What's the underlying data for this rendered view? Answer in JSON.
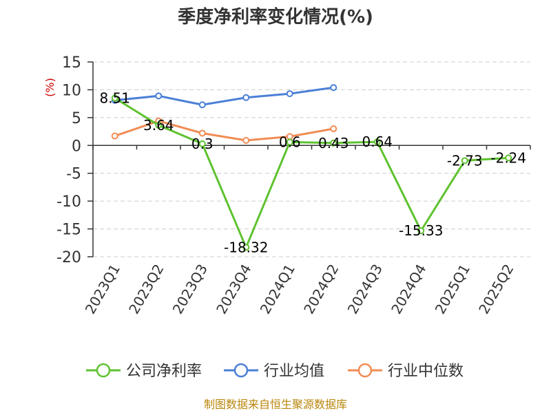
{
  "chart_data": {
    "type": "line",
    "title": "季度净利率变化情况(%)",
    "ylabel": "(%)",
    "ylim": [
      -20,
      15
    ],
    "yticks": [
      15,
      10,
      5,
      0,
      -5,
      -10,
      -15,
      -20
    ],
    "grid": true,
    "legend_position": "bottom",
    "categories": [
      "2023Q1",
      "2023Q2",
      "2023Q3",
      "2023Q4",
      "2024Q1",
      "2024Q2",
      "2024Q3",
      "2024Q4",
      "2025Q1",
      "2025Q2"
    ],
    "series": [
      {
        "name": "公司净利率",
        "color": "#5ec22f",
        "values": [
          8.51,
          3.64,
          0.3,
          -18.32,
          0.6,
          0.43,
          0.64,
          -15.33,
          -2.73,
          -2.24
        ],
        "labels": [
          "8.51",
          "3.64",
          "0.3",
          "-18.32",
          "0.6",
          "0.43",
          "0.64",
          "-15.33",
          "-2.73",
          "-2.24"
        ]
      },
      {
        "name": "行业均值",
        "color": "#4a7fd6",
        "values": [
          8.1,
          8.9,
          7.3,
          8.6,
          9.3,
          10.4,
          null,
          null,
          null,
          null
        ]
      },
      {
        "name": "行业中位数",
        "color": "#f08c54",
        "values": [
          1.7,
          4.4,
          2.2,
          0.9,
          1.6,
          3.0,
          null,
          null,
          null,
          null
        ]
      }
    ]
  },
  "footer": {
    "source": "制图数据来自恒生聚源数据库"
  }
}
